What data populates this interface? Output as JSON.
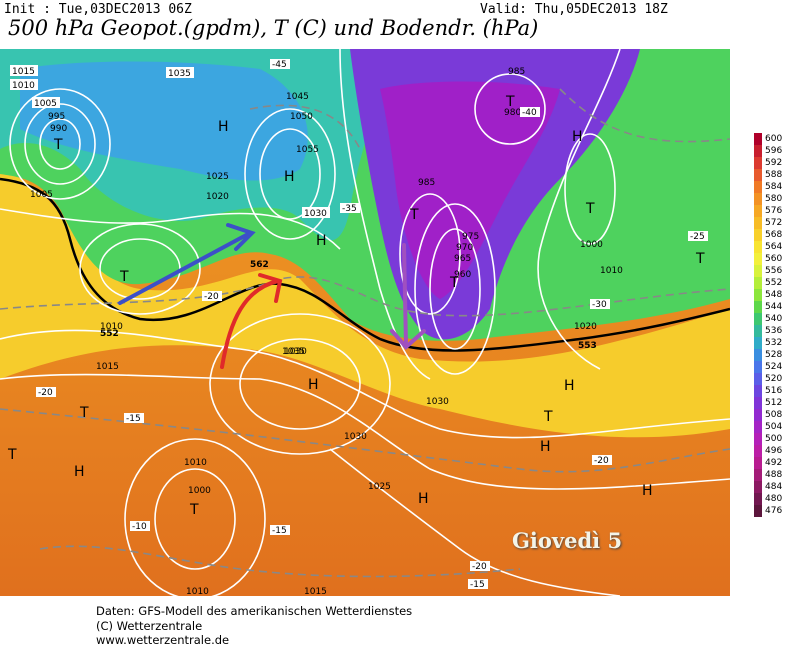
{
  "header": {
    "init": "Init : Tue,03DEC2013 06Z",
    "valid": "Valid: Thu,05DEC2013 18Z",
    "title": "500 hPa Geopot.(gpdm), T (C) und Bodendr. (hPa)"
  },
  "legend": {
    "levels": [
      "600",
      "596",
      "592",
      "588",
      "584",
      "580",
      "576",
      "572",
      "568",
      "564",
      "560",
      "556",
      "552",
      "548",
      "544",
      "540",
      "536",
      "532",
      "528",
      "524",
      "520",
      "516",
      "512",
      "508",
      "504",
      "500",
      "496",
      "492",
      "488",
      "484",
      "480",
      "476"
    ],
    "colors": [
      "#b0002a",
      "#c81e2e",
      "#dc3a30",
      "#e85a2e",
      "#f07a26",
      "#f39224",
      "#f6a824",
      "#f7bc26",
      "#f8d02a",
      "#f8e432",
      "#f3f03c",
      "#d8f23c",
      "#b4ee3a",
      "#8ce63c",
      "#5ed84a",
      "#3ec870",
      "#34ba9c",
      "#30acc8",
      "#3a8ee0",
      "#4a76ea",
      "#5a5ee8",
      "#6c46e0",
      "#8034d8",
      "#922ad0",
      "#a424c6",
      "#b420b8",
      "#bc1ea6",
      "#b81c90",
      "#a41c78",
      "#8c1a62",
      "#721850",
      "#5c163c"
    ]
  },
  "map": {
    "high_label": "H",
    "low_label": "T",
    "pressure_labels": [
      "1035",
      "1015",
      "1010",
      "1005",
      "995",
      "990",
      "1045",
      "1050",
      "1055",
      "1030",
      "1025",
      "1020",
      "985",
      "975",
      "970",
      "965",
      "960",
      "980",
      "1000",
      "985"
    ],
    "temp_labels": [
      "-45",
      "-40",
      "-35",
      "-30",
      "-25",
      "-20",
      "-15",
      "-10"
    ],
    "geopot_labels": [
      "552",
      "553",
      "562"
    ]
  },
  "caption": "Giovedì 5",
  "footer": {
    "line1": "Daten: GFS-Modell des amerikanischen Wetterdienstes",
    "line2": "(C) Wetterzentrale",
    "line3": "www.wetterzentrale.de"
  }
}
